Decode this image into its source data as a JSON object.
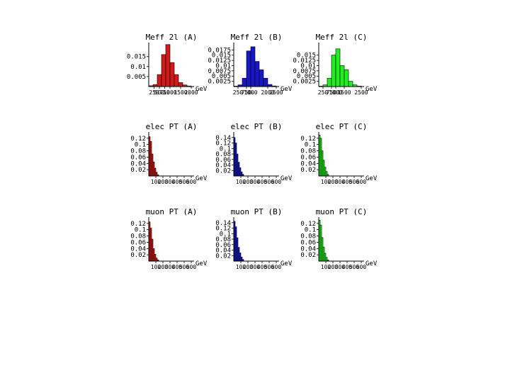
{
  "unit_label": "GeV",
  "colors": {
    "A": "#d11a1a",
    "B": "#1717c4",
    "C": "#22ee22",
    "axis": "#000000",
    "edge": "#000000"
  },
  "chart_data": [
    {
      "type": "bar",
      "title": "Meff 2l (A)",
      "xlabel": "GeV",
      "color_key": "A",
      "xlim": [
        0,
        2000
      ],
      "ylim": [
        0,
        0.022
      ],
      "yticks": [
        "0.015",
        "0.01",
        "0.005"
      ],
      "ytick_values": [
        0.015,
        0.01,
        0.005
      ],
      "xticks": [
        "250",
        "500",
        "750",
        "1000",
        "1500",
        "2000"
      ],
      "xtick_values": [
        250,
        500,
        750,
        1000,
        1500,
        2000
      ],
      "bin_edges": [
        0,
        200,
        400,
        600,
        800,
        1000,
        1200,
        1400,
        1600,
        1800,
        2000
      ],
      "values": [
        0.0004,
        0.001,
        0.006,
        0.016,
        0.021,
        0.012,
        0.006,
        0.002,
        0.0008,
        0.0003
      ]
    },
    {
      "type": "bar",
      "title": "Meff 2l (B)",
      "xlabel": "GeV",
      "color_key": "B",
      "xlim": [
        0,
        2500
      ],
      "ylim": [
        0,
        0.021
      ],
      "yticks": [
        "0.0175",
        "0.015",
        "0.0125",
        "0.01",
        "0.0075",
        "0.005",
        "0.0025"
      ],
      "ytick_values": [
        0.0175,
        0.015,
        0.0125,
        0.01,
        0.0075,
        0.005,
        0.0025
      ],
      "xticks": [
        "250",
        "750",
        "1000",
        "2000",
        "2500"
      ],
      "xtick_values": [
        250,
        750,
        1000,
        2000,
        2500
      ],
      "bin_edges": [
        0,
        250,
        500,
        750,
        1000,
        1250,
        1500,
        1750,
        2000,
        2250,
        2500
      ],
      "values": [
        0.0002,
        0.0008,
        0.004,
        0.017,
        0.019,
        0.012,
        0.008,
        0.004,
        0.001,
        0.0003
      ]
    },
    {
      "type": "bar",
      "title": "Meff 2l (C)",
      "xlabel": "GeV",
      "color_key": "C",
      "xlim": [
        0,
        2500
      ],
      "ylim": [
        0,
        0.021
      ],
      "yticks": [
        "0.015",
        "0.0125",
        "0.01",
        "0.0075",
        "0.005",
        "0.0025"
      ],
      "ytick_values": [
        0.015,
        0.0125,
        0.01,
        0.0075,
        0.005,
        0.0025
      ],
      "xticks": [
        "250",
        "750",
        "1000",
        "1500",
        "2500"
      ],
      "xtick_values": [
        250,
        750,
        1000,
        1500,
        2500
      ],
      "bin_edges": [
        0,
        250,
        500,
        750,
        1000,
        1250,
        1500,
        1750,
        2000,
        2250,
        2500
      ],
      "values": [
        0.0002,
        0.0008,
        0.004,
        0.015,
        0.018,
        0.01,
        0.008,
        0.0025,
        0.0008,
        0.0002
      ]
    },
    {
      "type": "bar",
      "title": "elec PT (A)",
      "xlabel": "GeV",
      "color_key": "A",
      "xlim": [
        0,
        600
      ],
      "ylim": [
        0,
        0.14
      ],
      "yticks": [
        "0.12",
        "0.1",
        "0.08",
        "0.06",
        "0.04",
        "0.02"
      ],
      "ytick_values": [
        0.12,
        0.1,
        0.08,
        0.06,
        0.04,
        0.02
      ],
      "xticks": [
        "100",
        "200",
        "300",
        "400",
        "500",
        "600"
      ],
      "xtick_values": [
        100,
        200,
        300,
        400,
        500,
        600
      ],
      "bin_edges": [
        0,
        20,
        40,
        60,
        80,
        100,
        120,
        140
      ],
      "values": [
        0.125,
        0.11,
        0.07,
        0.045,
        0.025,
        0.012,
        0.004
      ]
    },
    {
      "type": "bar",
      "title": "elec PT (B)",
      "xlabel": "GeV",
      "color_key": "B",
      "xlim": [
        0,
        600
      ],
      "ylim": [
        0,
        0.16
      ],
      "yticks": [
        "0.14",
        "0.12",
        "0.1",
        "0.08",
        "0.06",
        "0.04",
        "0.02"
      ],
      "ytick_values": [
        0.14,
        0.12,
        0.1,
        0.08,
        0.06,
        0.04,
        0.02
      ],
      "xticks": [
        "100",
        "200",
        "300",
        "400",
        "500",
        "600"
      ],
      "xtick_values": [
        100,
        200,
        300,
        400,
        500,
        600
      ],
      "bin_edges": [
        0,
        20,
        40,
        60,
        80,
        100,
        120,
        140
      ],
      "values": [
        0.14,
        0.12,
        0.08,
        0.05,
        0.03,
        0.015,
        0.006
      ]
    },
    {
      "type": "bar",
      "title": "elec PT (C)",
      "xlabel": "GeV",
      "color_key": "C",
      "xlim": [
        0,
        600
      ],
      "ylim": [
        0,
        0.14
      ],
      "yticks": [
        "0.12",
        "0.1",
        "0.08",
        "0.06",
        "0.04",
        "0.02"
      ],
      "ytick_values": [
        0.12,
        0.1,
        0.08,
        0.06,
        0.04,
        0.02
      ],
      "xticks": [
        "100",
        "200",
        "300",
        "400",
        "500",
        "600"
      ],
      "xtick_values": [
        100,
        200,
        300,
        400,
        500,
        600
      ],
      "bin_edges": [
        0,
        20,
        40,
        60,
        80,
        100,
        120,
        140
      ],
      "values": [
        0.13,
        0.12,
        0.08,
        0.05,
        0.028,
        0.014,
        0.005
      ]
    },
    {
      "type": "bar",
      "title": "muon PT (A)",
      "xlabel": "GeV",
      "color_key": "A",
      "xlim": [
        0,
        600
      ],
      "ylim": [
        0,
        0.14
      ],
      "yticks": [
        "0.12",
        "0.1",
        "0.08",
        "0.06",
        "0.04",
        "0.02"
      ],
      "ytick_values": [
        0.12,
        0.1,
        0.08,
        0.06,
        0.04,
        0.02
      ],
      "xticks": [
        "100",
        "200",
        "300",
        "400",
        "500",
        "600"
      ],
      "xtick_values": [
        100,
        200,
        300,
        400,
        500,
        600
      ],
      "bin_edges": [
        0,
        20,
        40,
        60,
        80,
        100,
        120,
        140
      ],
      "values": [
        0.125,
        0.105,
        0.07,
        0.04,
        0.022,
        0.01,
        0.004
      ]
    },
    {
      "type": "bar",
      "title": "muon PT (B)",
      "xlabel": "GeV",
      "color_key": "B",
      "xlim": [
        0,
        600
      ],
      "ylim": [
        0,
        0.16
      ],
      "yticks": [
        "0.14",
        "0.12",
        "0.1",
        "0.08",
        "0.06",
        "0.04",
        "0.02"
      ],
      "ytick_values": [
        0.14,
        0.12,
        0.1,
        0.08,
        0.06,
        0.04,
        0.02
      ],
      "xticks": [
        "100",
        "200",
        "300",
        "400",
        "500",
        "600"
      ],
      "xtick_values": [
        100,
        200,
        300,
        400,
        500,
        600
      ],
      "bin_edges": [
        0,
        20,
        40,
        60,
        80,
        100,
        120,
        140
      ],
      "values": [
        0.145,
        0.125,
        0.085,
        0.05,
        0.03,
        0.015,
        0.006
      ]
    },
    {
      "type": "bar",
      "title": "muon PT (C)",
      "xlabel": "GeV",
      "color_key": "C",
      "xlim": [
        0,
        600
      ],
      "ylim": [
        0,
        0.14
      ],
      "yticks": [
        "0.12",
        "0.1",
        "0.08",
        "0.06",
        "0.04",
        "0.02"
      ],
      "ytick_values": [
        0.12,
        0.1,
        0.08,
        0.06,
        0.04,
        0.02
      ],
      "xticks": [
        "100",
        "200",
        "300",
        "400",
        "500",
        "600"
      ],
      "xtick_values": [
        100,
        200,
        300,
        400,
        500,
        600
      ],
      "bin_edges": [
        0,
        20,
        40,
        60,
        80,
        100,
        120,
        140
      ],
      "values": [
        0.13,
        0.115,
        0.075,
        0.045,
        0.025,
        0.012,
        0.004
      ]
    }
  ]
}
